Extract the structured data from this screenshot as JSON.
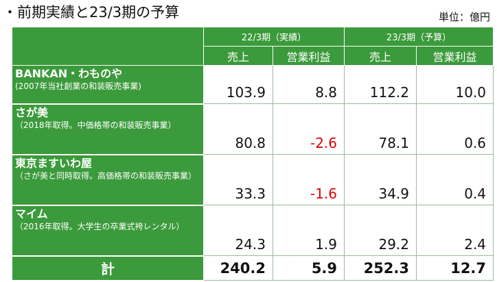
{
  "title": "・前期実績と23/3期の予算",
  "unit": "単位：億円",
  "columns": {
    "period1": "22/3期（実績）",
    "period2": "23/3期（予算）",
    "sales": "売上",
    "op_profit": "営業利益"
  },
  "rows": [
    {
      "name": "BANKAN・わものや",
      "note": "(2007年当社創業の和装販売事業)",
      "s1": "103.9",
      "p1": "8.8",
      "s2": "112.2",
      "p2": "10.0"
    },
    {
      "name": "さが美",
      "note": "（2018年取得。中価格帯の和装販売事業）",
      "s1": "80.8",
      "p1": "-2.6",
      "s2": "78.1",
      "p2": "0.6"
    },
    {
      "name": "東京ますいわ屋",
      "note": "（さが美と同時取得。高価格帯の和装販売事業）",
      "s1": "33.3",
      "p1": "-1.6",
      "s2": "34.9",
      "p2": "0.4"
    },
    {
      "name": "マイム",
      "note": "（2016年取得。大学生の卒業式袴レンタル）",
      "s1": "24.3",
      "p1": "1.9",
      "s2": "29.2",
      "p2": "2.4"
    }
  ],
  "total": {
    "label": "計",
    "s1": "240.2",
    "p1": "5.9",
    "s2": "252.3",
    "p2": "12.7"
  }
}
